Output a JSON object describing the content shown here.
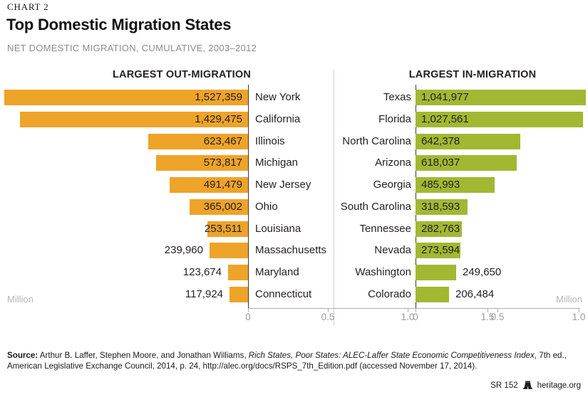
{
  "page": {
    "kicker": "CHART 2",
    "title": "Top Domestic Migration States",
    "subtitle": "NET DOMESTIC MIGRATION, CUMULATIVE, 2003–2012"
  },
  "chart_data": [
    {
      "type": "bar",
      "orientation": "horizontal",
      "direction": "right-to-left",
      "title": "LARGEST OUT-MIGRATION",
      "bar_color": "#eea329",
      "value_text_color": "#231f20",
      "axis": {
        "label": "Million",
        "ticks": [
          "1.5",
          "1.0",
          "0.5",
          "0"
        ],
        "range_million": [
          0,
          1.5
        ]
      },
      "rows": [
        {
          "state": "New York",
          "value": 1527359,
          "label": "1,527,359",
          "value_inside": true
        },
        {
          "state": "California",
          "value": 1429475,
          "label": "1,429,475",
          "value_inside": true
        },
        {
          "state": "Illinois",
          "value": 623467,
          "label": "623,467",
          "value_inside": true
        },
        {
          "state": "Michigan",
          "value": 573817,
          "label": "573,817",
          "value_inside": true
        },
        {
          "state": "New Jersey",
          "value": 491479,
          "label": "491,479",
          "value_inside": true
        },
        {
          "state": "Ohio",
          "value": 365002,
          "label": "365,002",
          "value_inside": true
        },
        {
          "state": "Louisiana",
          "value": 253511,
          "label": "253,511",
          "value_inside": true
        },
        {
          "state": "Massachusetts",
          "value": 239960,
          "label": "239,960",
          "value_inside": false
        },
        {
          "state": "Maryland",
          "value": 123674,
          "label": "123,674",
          "value_inside": false
        },
        {
          "state": "Connecticut",
          "value": 117924,
          "label": "117,924",
          "value_inside": false
        }
      ]
    },
    {
      "type": "bar",
      "orientation": "horizontal",
      "direction": "left-to-right",
      "title": "LARGEST IN-MIGRATION",
      "bar_color": "#a2b833",
      "value_text_color": "#231f20",
      "axis": {
        "label": "Million",
        "ticks": [
          "0",
          "0.5",
          "1.0"
        ],
        "range_million": [
          0,
          1.0
        ]
      },
      "rows": [
        {
          "state": "Texas",
          "value": 1041977,
          "label": "1,041,977",
          "value_inside": true
        },
        {
          "state": "Florida",
          "value": 1027561,
          "label": "1,027,561",
          "value_inside": true
        },
        {
          "state": "North Carolina",
          "value": 642378,
          "label": "642,378",
          "value_inside": true
        },
        {
          "state": "Arizona",
          "value": 618037,
          "label": "618,037",
          "value_inside": true
        },
        {
          "state": "Georgia",
          "value": 485993,
          "label": "485,993",
          "value_inside": true
        },
        {
          "state": "South Carolina",
          "value": 318593,
          "label": "318,593",
          "value_inside": true
        },
        {
          "state": "Tennessee",
          "value": 282763,
          "label": "282,763",
          "value_inside": true
        },
        {
          "state": "Nevada",
          "value": 273594,
          "label": "273,594",
          "value_inside": true
        },
        {
          "state": "Washington",
          "value": 249650,
          "label": "249,650",
          "value_inside": false
        },
        {
          "state": "Colorado",
          "value": 206484,
          "label": "206,484",
          "value_inside": false
        }
      ]
    }
  ],
  "footer": {
    "source_bold": "Source:",
    "source_pre_italic": " Arthur B. Laffer, Stephen Moore, and Jonathan Williams, ",
    "source_italic": "Rich States, Poor States: ALEC-Laffer State Economic Competitiveness Index",
    "source_post_italic": ", 7th ed., American Legislative Exchange Council, 2014, p. 24, http://alec.org/docs/RSPS_7th_Edition.pdf (accessed November 17, 2014).",
    "report_id": "SR 152",
    "brand": "heritage.org"
  }
}
